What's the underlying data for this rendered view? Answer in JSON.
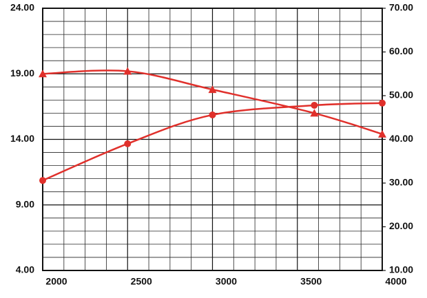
{
  "chart_data": {
    "type": "line",
    "x": [
      2000,
      2500,
      3000,
      3600,
      4000
    ],
    "xlim": [
      2000,
      4000
    ],
    "xticks": [
      2000,
      2500,
      3000,
      3500,
      4000
    ],
    "ylim": [
      4,
      24
    ],
    "yticks": [
      {
        "value": 4,
        "label": "4.00"
      },
      {
        "value": 9,
        "label": "9.00"
      },
      {
        "value": 14,
        "label": "14.00"
      },
      {
        "value": 19,
        "label": "19.00"
      },
      {
        "value": 24,
        "label": "24.00"
      }
    ],
    "y2lim": [
      10,
      70
    ],
    "y2ticks": [
      {
        "value": 10,
        "label": "10.00"
      },
      {
        "value": 20,
        "label": "20.00"
      },
      {
        "value": 30,
        "label": "30.00"
      },
      {
        "value": 40,
        "label": "40.00"
      },
      {
        "value": 50,
        "label": "50.00"
      },
      {
        "value": 60,
        "label": "60.00"
      },
      {
        "value": 70,
        "label": "70.00"
      }
    ],
    "grid": true,
    "series": [
      {
        "color": "#e0302b",
        "marker": "triangle",
        "values": [
          19.0,
          19.2,
          17.8,
          16.0,
          14.4
        ]
      },
      {
        "color": "#e0302b",
        "marker": "circle",
        "axis": "y2",
        "values": [
          30.6,
          39.0,
          45.6,
          47.8,
          48.3
        ]
      }
    ]
  }
}
